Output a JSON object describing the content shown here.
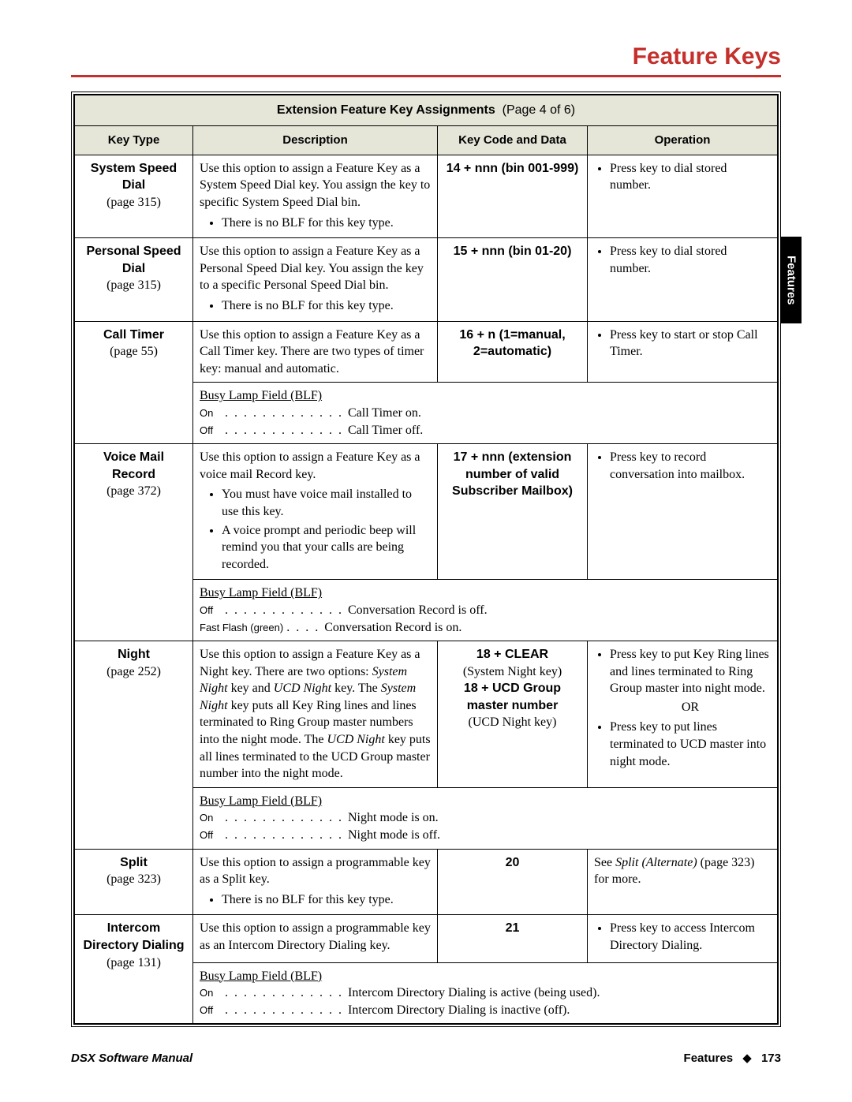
{
  "page": {
    "title": "Feature Keys",
    "tab_label": "Features",
    "footer_left": "DSX Software Manual",
    "footer_section": "Features",
    "footer_page": "173"
  },
  "table": {
    "caption_bold": "Extension Feature Key Assignments",
    "caption_page": "(Page 4 of 6)",
    "headers": {
      "c1": "Key Type",
      "c2": "Description",
      "c3": "Key Code and Data",
      "c4": "Operation"
    }
  },
  "rows": {
    "r1": {
      "kt_bold": "System Speed Dial",
      "kt_page": "(page 315)",
      "desc_main": "Use this option to assign a Feature Key as a System Speed Dial key. You assign the key to specific System Speed Dial bin.",
      "desc_li1": "There is no BLF for this key type.",
      "kc": "14 + nnn (bin 001-999)",
      "op_li1": "Press key to dial stored number."
    },
    "r2": {
      "kt_bold": "Personal Speed Dial",
      "kt_page": "(page 315)",
      "desc_main": "Use this option to assign a Feature Key as a Personal Speed Dial key. You assign the key to a specific Personal Speed Dial bin.",
      "desc_li1": "There is no BLF for this key type.",
      "kc": "15 + nnn (bin 01-20)",
      "op_li1": "Press key to dial stored number."
    },
    "r3": {
      "kt_bold": "Call Timer",
      "kt_page": "(page 55)",
      "desc_main": "Use this option to assign a Feature Key as a Call Timer key. There are two types of timer key: manual and automatic.",
      "kc": "16 + n (1=manual, 2=automatic)",
      "op_li1": "Press key to start or stop Call Timer.",
      "blf_title": "Busy Lamp Field (BLF)",
      "blf_on_text": "Call Timer on.",
      "blf_off_text": "Call Timer off."
    },
    "r4": {
      "kt_bold": "Voice Mail Record",
      "kt_page": "(page 372)",
      "desc_main": "Use this option to assign a Feature Key as a voice mail Record key.",
      "desc_li1": "You must have voice mail installed to use this key.",
      "desc_li2": "A voice prompt and periodic beep will remind you that your calls are being recorded.",
      "kc": "17 + nnn (extension number of valid Subscriber Mailbox)",
      "op_li1": "Press key to record conversation into mailbox.",
      "blf_title": "Busy Lamp Field (BLF)",
      "blf_off_text": "Conversation Record is off.",
      "blf_flash_label": "Fast Flash (green)",
      "blf_flash_text": "Conversation Record is on."
    },
    "r5": {
      "kt_bold": "Night",
      "kt_page": "(page 252)",
      "kc_l1": "18 + CLEAR",
      "kc_l2": "(System Night key)",
      "kc_l3": "18 + UCD Group master number",
      "kc_l4": "(UCD Night key)",
      "op_li1": "Press key to put Key Ring lines and lines terminated to Ring Group master into night mode.",
      "op_or": "OR",
      "op_li2": "Press key to put lines terminated to UCD master into night mode.",
      "blf_title": "Busy Lamp Field (BLF)",
      "blf_on_text": "Night mode is on.",
      "blf_off_text": "Night mode is off."
    },
    "r6": {
      "kt_bold": "Split",
      "kt_page": "(page 323)",
      "desc_main": "Use this option to assign a programmable key as a Split key.",
      "desc_li1": "There is no BLF for this key type.",
      "kc": "20"
    },
    "r7": {
      "kt_bold": "Intercom Directory Dialing",
      "kt_page": "(page 131)",
      "desc_main": "Use this option to assign a programmable key as an Intercom Directory Dialing key.",
      "kc": "21",
      "op_li1": "Press key to access Intercom Directory Dialing.",
      "blf_title": "Busy Lamp Field (BLF)",
      "blf_on_text": "Intercom Directory Dialing is active (being used).",
      "blf_off_text": "Intercom Directory Dialing is inactive (off)."
    }
  },
  "labels": {
    "on": "On",
    "off": "Off"
  }
}
